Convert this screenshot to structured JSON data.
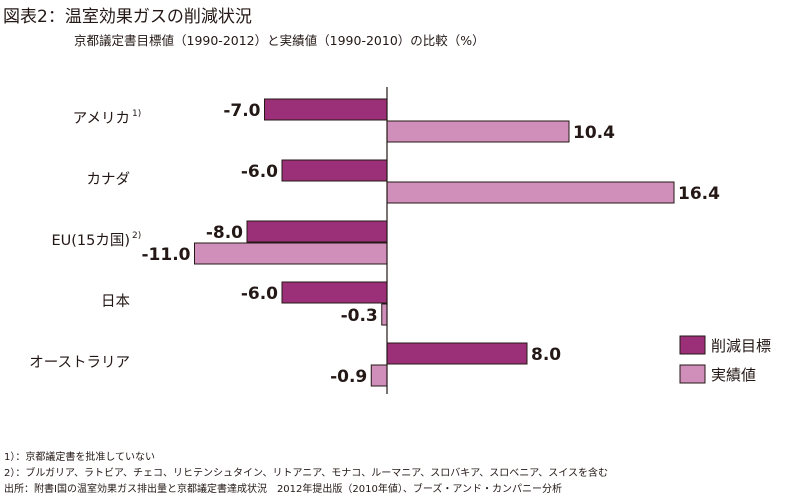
{
  "title": "図表2：温室効果ガスの削減状況",
  "subtitle": "京都議定書目標値（1990-2012）と実績値（1990-2010）の比較（%）",
  "chart_data": {
    "type": "bar",
    "orientation": "horizontal",
    "categories": [
      "アメリカ",
      "カナダ",
      "EU(15カ国)",
      "日本",
      "オーストラリア"
    ],
    "category_notes": [
      "1)",
      "",
      "2)",
      "",
      ""
    ],
    "series": [
      {
        "name": "削減目標",
        "values": [
          -7.0,
          -6.0,
          -8.0,
          -6.0,
          8.0
        ],
        "labels": [
          "-7.0",
          "-6.0",
          "-8.0",
          "-6.0",
          "8.0"
        ],
        "color": "#9b2f78"
      },
      {
        "name": "実績値",
        "values": [
          10.4,
          16.4,
          -11.0,
          -0.3,
          -0.9
        ],
        "labels": [
          "10.4",
          "16.4",
          "-11.0",
          "-0.3",
          "-0.9"
        ],
        "color": "#d08fbb"
      }
    ],
    "xlim": [
      -11,
      16.4
    ],
    "grid": false,
    "legend_position": "bottom-right"
  },
  "notes": {
    "note1": "1）：京都議定書を批准していない",
    "note2": "2）：ブルガリア、ラトビア、チェコ、リヒテンシュタイン、リトアニア、モナコ、ルーマニア、スロバキア、スロベニア、スイスを含む",
    "source": "出所：附書I国の温室効果ガス排出量と京都議定書達成状況　2012年提出版（2010年値）、ブーズ・アンド・カンパニー分析"
  }
}
